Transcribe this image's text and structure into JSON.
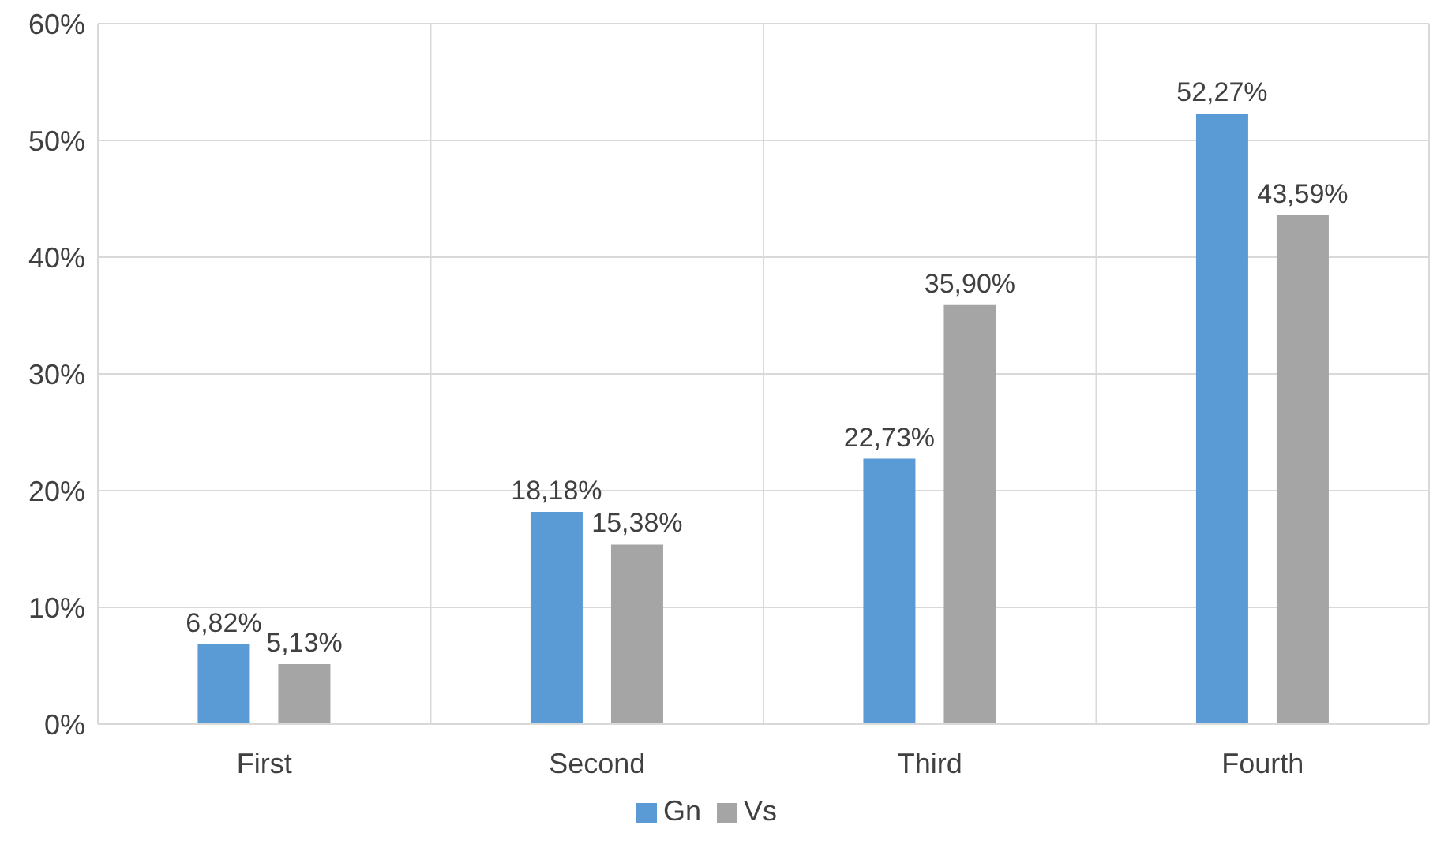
{
  "chart_data": {
    "type": "bar",
    "categories": [
      "First",
      "Second",
      "Third",
      "Fourth"
    ],
    "series": [
      {
        "name": "Gn",
        "color": "#5b9bd5",
        "values": [
          6.82,
          18.18,
          22.73,
          52.27
        ],
        "value_labels": [
          "6,82%",
          "18,18%",
          "22,73%",
          "52,27%"
        ]
      },
      {
        "name": "Vs",
        "color": "#a5a5a5",
        "values": [
          5.13,
          15.38,
          35.9,
          43.59
        ],
        "value_labels": [
          "5,13%",
          "15,38%",
          "35,90%",
          "43,59%"
        ]
      }
    ],
    "ylim": [
      0,
      60
    ],
    "yticks": [
      {
        "value": 0,
        "label": "0%"
      },
      {
        "value": 10,
        "label": "10%"
      },
      {
        "value": 20,
        "label": "20%"
      },
      {
        "value": 30,
        "label": "30%"
      },
      {
        "value": 40,
        "label": "40%"
      },
      {
        "value": 50,
        "label": "50%"
      },
      {
        "value": 60,
        "label": "60%"
      }
    ],
    "grid": true,
    "legend": "bottom"
  }
}
